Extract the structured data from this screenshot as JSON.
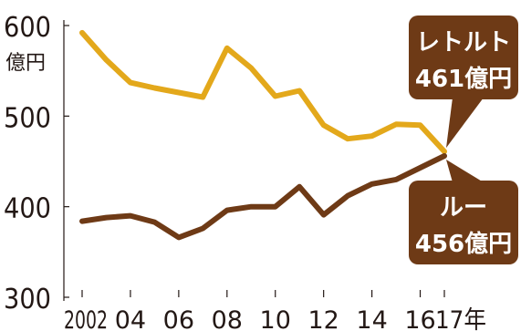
{
  "chart_data": {
    "type": "line",
    "x": [
      2002,
      2003,
      2004,
      2005,
      2006,
      2007,
      2008,
      2009,
      2010,
      2011,
      2012,
      2013,
      2014,
      2015,
      2016,
      2017
    ],
    "x_tick_labels": [
      {
        "x": 2002,
        "label": "2002"
      },
      {
        "x": 2004,
        "label": "04"
      },
      {
        "x": 2006,
        "label": "06"
      },
      {
        "x": 2008,
        "label": "08"
      },
      {
        "x": 2010,
        "label": "10"
      },
      {
        "x": 2012,
        "label": "12"
      },
      {
        "x": 2014,
        "label": "14"
      },
      {
        "x": 2016,
        "label": "16"
      },
      {
        "x": 2017,
        "label": "17年"
      }
    ],
    "ylim": [
      300,
      600
    ],
    "y_ticks": [
      300,
      400,
      500,
      600
    ],
    "y_unit": "億円",
    "grid": false,
    "series": [
      {
        "key": "retort",
        "color": "#e3a81b",
        "values": [
          592,
          562,
          537,
          531,
          526,
          521,
          575,
          553,
          522,
          528,
          490,
          475,
          478,
          491,
          490,
          461
        ]
      },
      {
        "key": "roux",
        "color": "#6e3a16",
        "values": [
          384,
          388,
          390,
          383,
          366,
          376,
          396,
          400,
          400,
          422,
          391,
          412,
          425,
          430,
          443,
          456
        ]
      }
    ],
    "annotations": [
      {
        "series": "retort",
        "line1": "レトルト",
        "line2": "461億円",
        "bg": "#6e3a16"
      },
      {
        "series": "roux",
        "line1": "ルー",
        "line2": "456億円",
        "bg": "#6e3a16"
      }
    ]
  }
}
